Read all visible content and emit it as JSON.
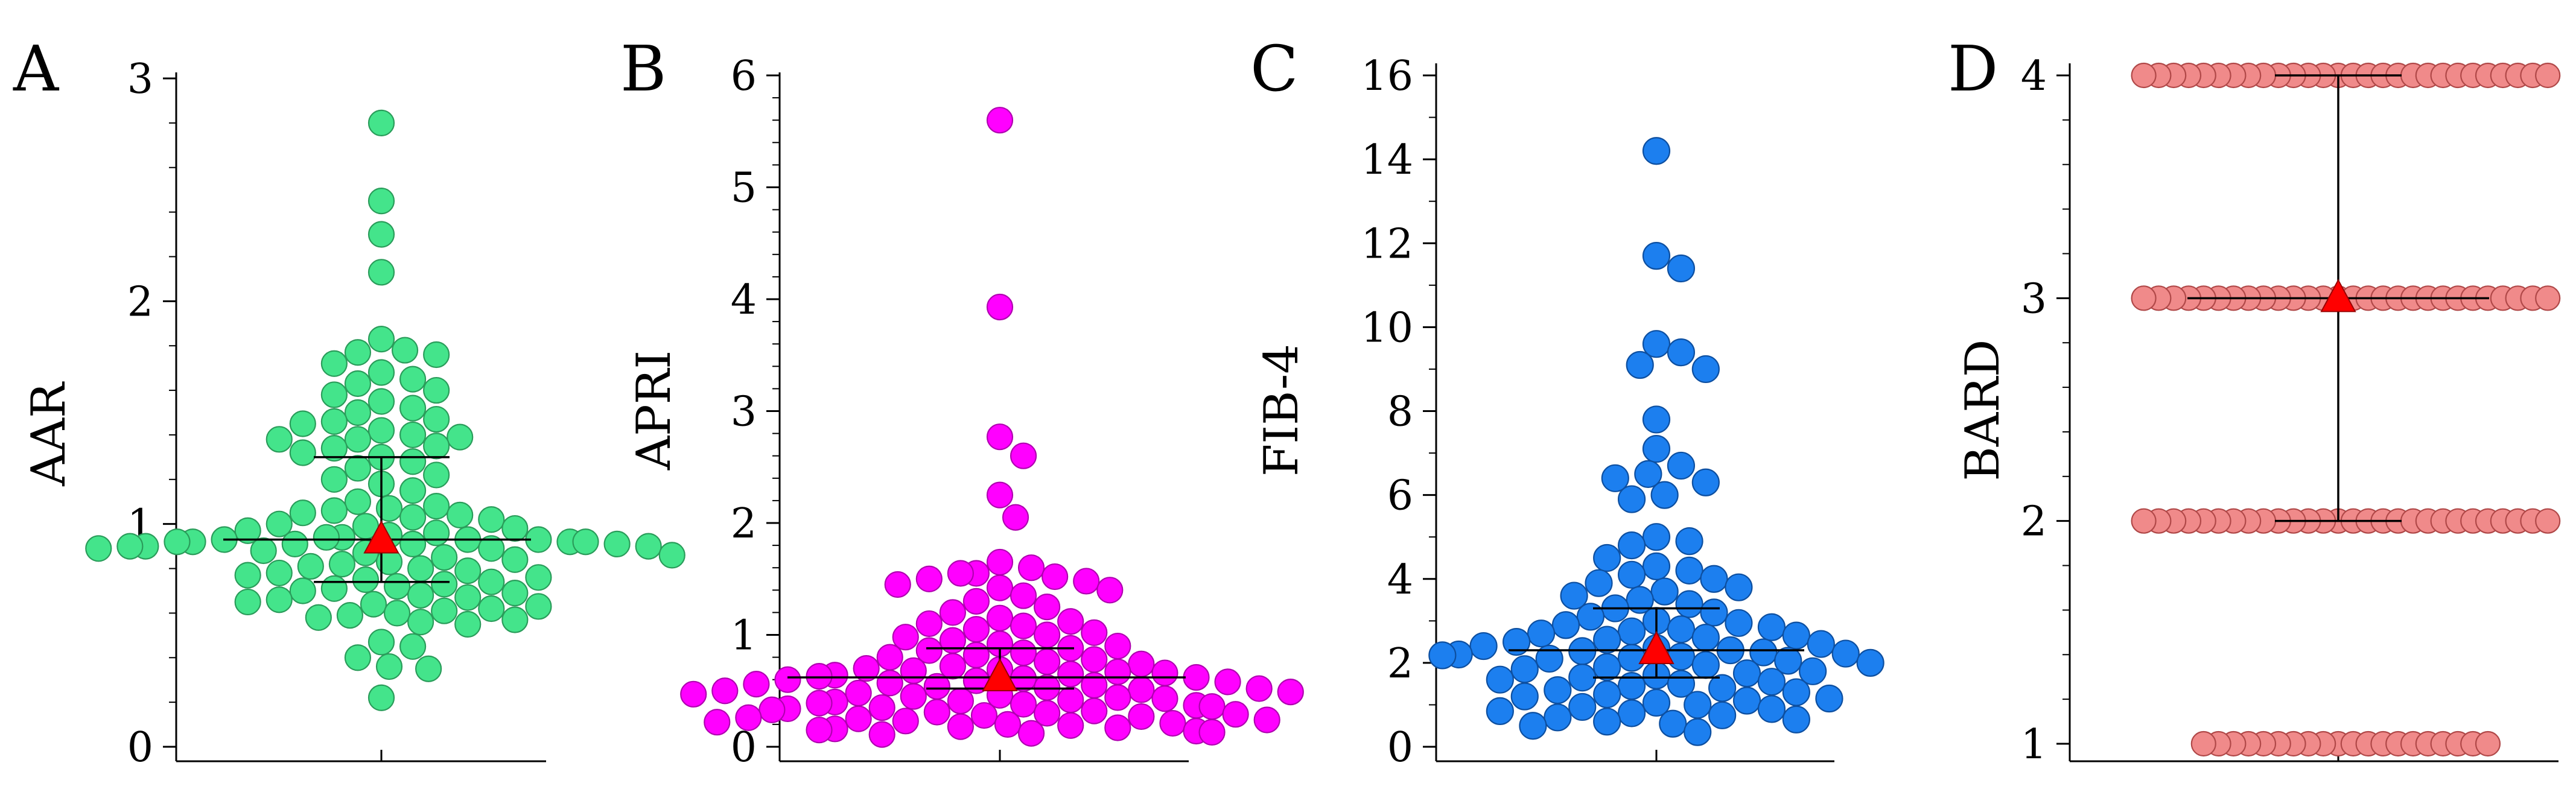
{
  "chart_data": [
    {
      "panel": "A",
      "type": "scatter",
      "subtype": "beeswarm",
      "ylabel": "AAR",
      "ylim": [
        0,
        3
      ],
      "yticks": [
        "0",
        "1",
        "2",
        "3"
      ],
      "color": "#44e48b",
      "stroke": "#2a9c5a",
      "summary": {
        "mean": 0.93,
        "median": 0.93,
        "q1": 0.74,
        "q3": 1.3
      },
      "values": [
        2.8,
        2.45,
        2.3,
        2.13,
        1.83,
        1.78,
        1.77,
        1.76,
        1.72,
        1.68,
        1.65,
        1.63,
        1.6,
        1.58,
        1.55,
        1.52,
        1.5,
        1.47,
        1.46,
        1.45,
        1.42,
        1.4,
        1.39,
        1.38,
        1.38,
        1.35,
        1.34,
        1.32,
        1.3,
        1.28,
        1.25,
        1.22,
        1.2,
        1.18,
        1.15,
        1.1,
        1.08,
        1.07,
        1.06,
        1.05,
        1.04,
        1.03,
        1.02,
        1.0,
        0.99,
        0.98,
        0.97,
        0.96,
        0.95,
        0.94,
        0.94,
        0.93,
        0.93,
        0.93,
        0.92,
        0.92,
        0.92,
        0.92,
        0.91,
        0.91,
        0.91,
        0.9,
        0.9,
        0.9,
        0.89,
        0.89,
        0.88,
        0.87,
        0.86,
        0.85,
        0.84,
        0.83,
        0.82,
        0.81,
        0.8,
        0.79,
        0.78,
        0.77,
        0.76,
        0.75,
        0.74,
        0.73,
        0.72,
        0.71,
        0.7,
        0.69,
        0.68,
        0.67,
        0.66,
        0.65,
        0.64,
        0.63,
        0.62,
        0.61,
        0.6,
        0.59,
        0.58,
        0.57,
        0.56,
        0.55,
        0.47,
        0.45,
        0.4,
        0.36,
        0.35,
        0.22
      ]
    },
    {
      "panel": "B",
      "type": "scatter",
      "subtype": "beeswarm",
      "ylabel": "APRI",
      "ylim": [
        0,
        6
      ],
      "yticks": [
        "0",
        "1",
        "2",
        "3",
        "4",
        "5",
        "6"
      ],
      "color": "#ff00ff",
      "stroke": "#b000b0",
      "summary": {
        "mean": 0.62,
        "median": 0.62,
        "q1": 0.52,
        "q3": 0.88
      },
      "values": [
        5.6,
        3.93,
        2.77,
        2.6,
        2.25,
        2.05,
        1.65,
        1.6,
        1.55,
        1.55,
        1.52,
        1.5,
        1.48,
        1.45,
        1.42,
        1.4,
        1.35,
        1.3,
        1.25,
        1.2,
        1.15,
        1.12,
        1.1,
        1.08,
        1.05,
        1.02,
        1.0,
        0.98,
        0.95,
        0.92,
        0.9,
        0.88,
        0.86,
        0.84,
        0.82,
        0.8,
        0.78,
        0.76,
        0.74,
        0.72,
        0.7,
        0.69,
        0.68,
        0.67,
        0.66,
        0.65,
        0.64,
        0.63,
        0.62,
        0.61,
        0.6,
        0.59,
        0.58,
        0.57,
        0.56,
        0.55,
        0.54,
        0.53,
        0.52,
        0.51,
        0.5,
        0.49,
        0.48,
        0.47,
        0.46,
        0.45,
        0.44,
        0.43,
        0.42,
        0.41,
        0.4,
        0.39,
        0.38,
        0.37,
        0.36,
        0.35,
        0.34,
        0.33,
        0.32,
        0.31,
        0.3,
        0.29,
        0.28,
        0.27,
        0.26,
        0.25,
        0.24,
        0.23,
        0.22,
        0.21,
        0.2,
        0.19,
        0.18,
        0.17,
        0.16,
        0.15,
        0.14,
        0.13,
        0.12,
        0.11
      ]
    },
    {
      "panel": "C",
      "type": "scatter",
      "subtype": "beeswarm",
      "ylabel": "FIB-4",
      "ylim": [
        0,
        16
      ],
      "yticks": [
        "0",
        "2",
        "4",
        "6",
        "8",
        "10",
        "12",
        "14",
        "16"
      ],
      "color": "#1c7fef",
      "stroke": "#0d4fa0",
      "summary": {
        "mean": 2.3,
        "median": 2.3,
        "q1": 1.65,
        "q3": 3.3
      },
      "values": [
        14.2,
        11.7,
        11.4,
        9.6,
        9.4,
        9.1,
        9.0,
        7.8,
        7.1,
        6.7,
        6.5,
        6.4,
        6.3,
        6.0,
        5.9,
        5.0,
        4.9,
        4.8,
        4.5,
        4.3,
        4.2,
        4.1,
        4.0,
        3.9,
        3.8,
        3.7,
        3.6,
        3.5,
        3.4,
        3.3,
        3.2,
        3.1,
        3.0,
        2.95,
        2.9,
        2.85,
        2.8,
        2.75,
        2.7,
        2.65,
        2.6,
        2.55,
        2.5,
        2.45,
        2.4,
        2.35,
        2.3,
        2.28,
        2.25,
        2.22,
        2.2,
        2.18,
        2.15,
        2.12,
        2.1,
        2.05,
        2.0,
        1.95,
        1.9,
        1.85,
        1.8,
        1.75,
        1.7,
        1.65,
        1.6,
        1.55,
        1.5,
        1.45,
        1.4,
        1.35,
        1.3,
        1.25,
        1.2,
        1.15,
        1.1,
        1.05,
        1.0,
        0.95,
        0.9,
        0.85,
        0.8,
        0.75,
        0.7,
        0.65,
        0.6,
        0.55,
        0.5,
        0.35
      ]
    },
    {
      "panel": "D",
      "type": "scatter",
      "subtype": "beeswarm",
      "ylabel": "BARD",
      "ylim": [
        1,
        4
      ],
      "yticks": [
        "1",
        "2",
        "3",
        "4"
      ],
      "color": "#f08a8a",
      "stroke": "#b04848",
      "summary": {
        "mean": 3.0,
        "median": 3.0,
        "q1": 2.0,
        "q3": 4.0
      },
      "values": [
        4,
        4,
        4,
        4,
        4,
        4,
        4,
        4,
        4,
        4,
        4,
        4,
        4,
        4,
        4,
        4,
        4,
        4,
        4,
        4,
        4,
        4,
        4,
        4,
        4,
        4,
        4,
        4,
        3,
        3,
        3,
        3,
        3,
        3,
        3,
        3,
        3,
        3,
        3,
        3,
        3,
        3,
        3,
        3,
        3,
        3,
        3,
        3,
        3,
        3,
        3,
        3,
        3,
        3,
        3,
        3,
        2,
        2,
        2,
        2,
        2,
        2,
        2,
        2,
        2,
        2,
        2,
        2,
        2,
        2,
        2,
        2,
        2,
        2,
        2,
        2,
        2,
        2,
        2,
        2,
        2,
        2,
        2,
        2,
        1,
        1,
        1,
        1,
        1,
        1,
        1,
        1,
        1,
        1,
        1,
        1,
        1,
        1,
        1,
        1,
        1,
        1,
        1,
        1
      ]
    }
  ]
}
